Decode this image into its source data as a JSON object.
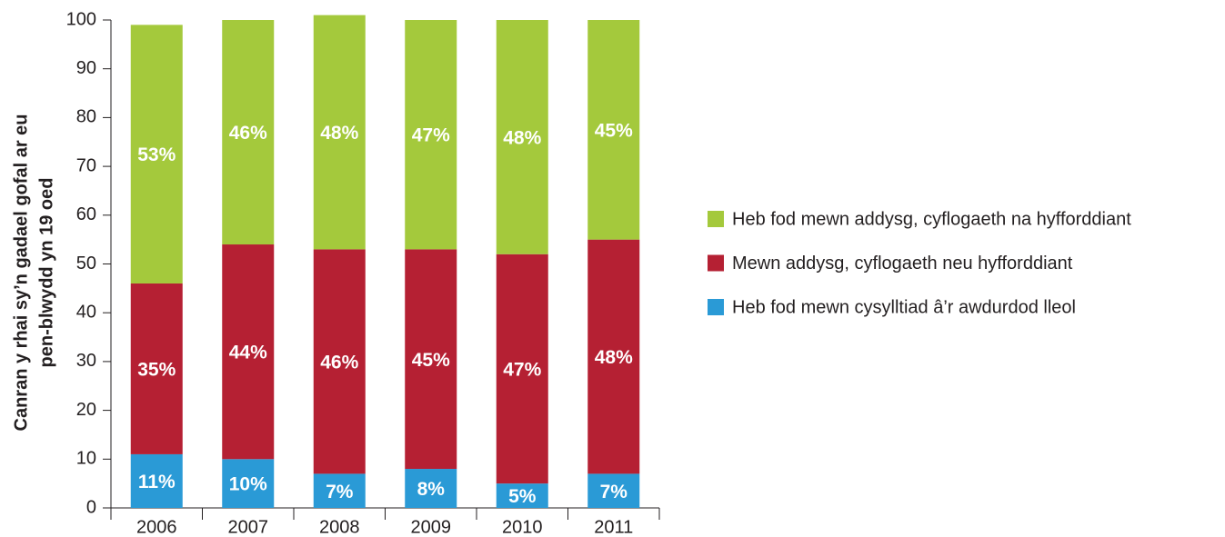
{
  "chart_data": {
    "type": "stacked_bar",
    "ylabel": [
      "Canran y rhai sy’n gadael gofal ar eu",
      "pen-blwydd yn 19 oed"
    ],
    "categories": [
      "2006",
      "2007",
      "2008",
      "2009",
      "2010",
      "2011"
    ],
    "series": [
      {
        "name": "Heb fod mewn cysylltiad â’r awdurdod lleol",
        "color": "#2a9ad6",
        "values": [
          11,
          10,
          7,
          8,
          5,
          7
        ],
        "value_labels": [
          "11%",
          "10%",
          "7%",
          "8%",
          "5%",
          "7%"
        ]
      },
      {
        "name": "Mewn addysg, cyflogaeth neu hyfforddiant",
        "color": "#b52033",
        "values": [
          35,
          44,
          46,
          45,
          47,
          48
        ],
        "value_labels": [
          "35%",
          "44%",
          "46%",
          "45%",
          "47%",
          "48%"
        ]
      },
      {
        "name": "Heb fod mewn addysg, cyflogaeth na hyfforddiant",
        "color": "#a4c93c",
        "values": [
          53,
          46,
          48,
          47,
          48,
          45
        ],
        "value_labels": [
          "53%",
          "46%",
          "48%",
          "47%",
          "48%",
          "45%"
        ]
      }
    ],
    "ylim": [
      0,
      100
    ],
    "yticks": [
      0,
      10,
      20,
      30,
      40,
      50,
      60,
      70,
      80,
      90,
      100
    ],
    "grid": false,
    "legend": "right"
  }
}
